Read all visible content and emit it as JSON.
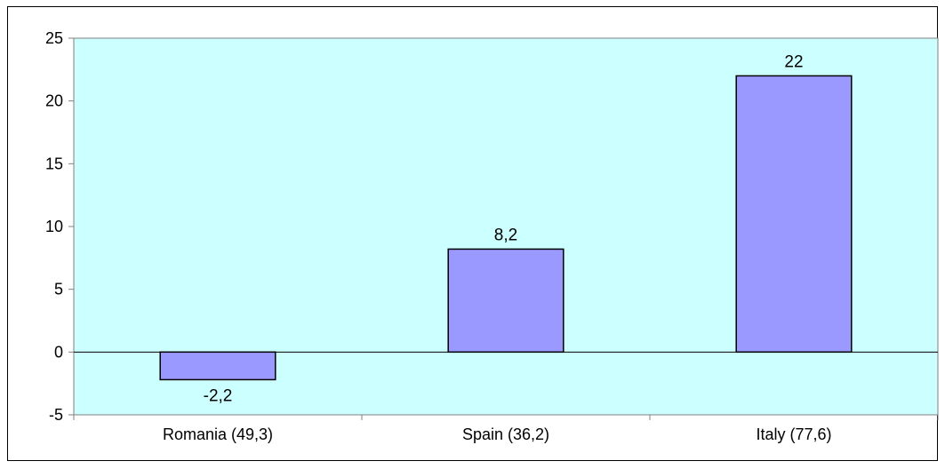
{
  "chart_data": {
    "type": "bar",
    "title": "",
    "xlabel": "",
    "ylabel": "",
    "categories": [
      "Romania (49,3)",
      "Spain (36,2)",
      "Italy (77,6)"
    ],
    "values": [
      -2.2,
      8.2,
      22
    ],
    "value_labels": [
      "-2,2",
      "8,2",
      "22"
    ],
    "ylim": [
      -5,
      25
    ],
    "yticks": [
      -5,
      0,
      5,
      10,
      15,
      20,
      25
    ],
    "ytick_labels": [
      "-5",
      "0",
      "5",
      "10",
      "15",
      "20",
      "25"
    ],
    "grid": false,
    "legend": "none",
    "colors": {
      "plot_background": "#ccffff",
      "bar_fill": "#9999ff",
      "bar_stroke": "#000000"
    }
  }
}
